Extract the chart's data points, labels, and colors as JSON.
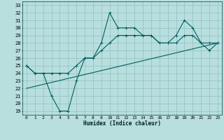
{
  "xlabel": "Humidex (Indice chaleur)",
  "bg_color": "#b8dede",
  "grid_color": "#90c0c0",
  "line_color": "#006060",
  "xlim": [
    -0.5,
    23.5
  ],
  "ylim": [
    18.5,
    33.5
  ],
  "yticks": [
    19,
    20,
    21,
    22,
    23,
    24,
    25,
    26,
    27,
    28,
    29,
    30,
    31,
    32,
    33
  ],
  "xticks": [
    0,
    1,
    2,
    3,
    4,
    5,
    6,
    7,
    8,
    9,
    10,
    11,
    12,
    13,
    14,
    15,
    16,
    17,
    18,
    19,
    20,
    21,
    22,
    23
  ],
  "line1_x": [
    0,
    1,
    2,
    3,
    4,
    5,
    6,
    7,
    8,
    9,
    10,
    11,
    12,
    13,
    14,
    15,
    16,
    17,
    18,
    19,
    20,
    21,
    22,
    23
  ],
  "line1_y": [
    25,
    24,
    24,
    21,
    19,
    19,
    23,
    26,
    26,
    28,
    32,
    30,
    30,
    30,
    29,
    29,
    28,
    28,
    29,
    31,
    30,
    28,
    27,
    28
  ],
  "line2_x": [
    0,
    1,
    2,
    3,
    4,
    5,
    6,
    7,
    8,
    9,
    10,
    11,
    12,
    13,
    14,
    15,
    16,
    17,
    18,
    19,
    20,
    21,
    22,
    23
  ],
  "line2_y": [
    25,
    24,
    24,
    24,
    24,
    24,
    25,
    26,
    26,
    27,
    28,
    29,
    29,
    29,
    29,
    29,
    28,
    28,
    28,
    29,
    29,
    28,
    28,
    28
  ],
  "line3_x": [
    0,
    23
  ],
  "line3_y": [
    22,
    28
  ]
}
